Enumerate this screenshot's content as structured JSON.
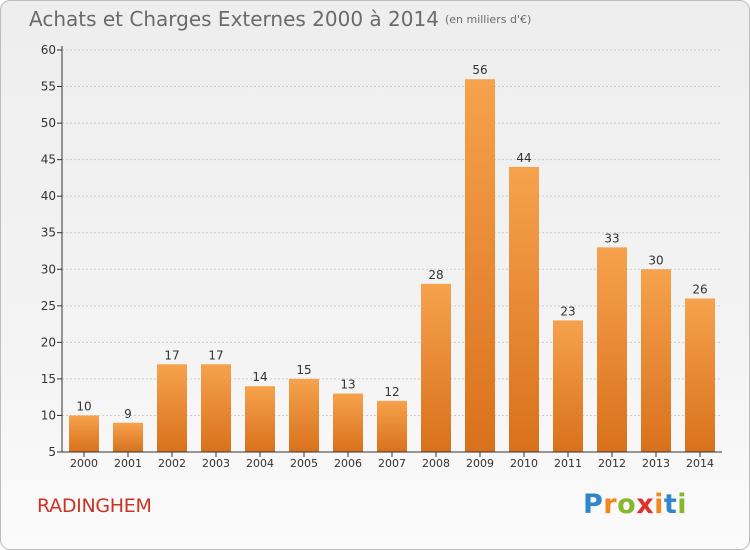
{
  "header": {
    "title": "Achats et Charges Externes 2000 à 2014",
    "subtitle": "(en milliers d'€)"
  },
  "footer": {
    "commune": "RADINGHEM",
    "logo_text": "Proxiti"
  },
  "colors": {
    "bar_top": "#f6a24c",
    "bar_bottom": "#d9711c",
    "axis": "#333333",
    "grid": "#cccccc",
    "commune": "#cc3322"
  },
  "chart_data": {
    "type": "bar",
    "title": "Achats et Charges Externes 2000 à 2014",
    "subtitle": "(en milliers d'€)",
    "categories": [
      "2000",
      "2001",
      "2002",
      "2003",
      "2004",
      "2005",
      "2006",
      "2007",
      "2008",
      "2009",
      "2010",
      "2011",
      "2012",
      "2013",
      "2014"
    ],
    "values": [
      10,
      9,
      17,
      17,
      14,
      15,
      13,
      12,
      28,
      56,
      44,
      23,
      33,
      30,
      26
    ],
    "ylim": [
      5,
      60
    ],
    "yticks": [
      5,
      10,
      15,
      20,
      25,
      30,
      35,
      40,
      45,
      50,
      55,
      60
    ],
    "grid": true,
    "xlabel": "",
    "ylabel": ""
  }
}
